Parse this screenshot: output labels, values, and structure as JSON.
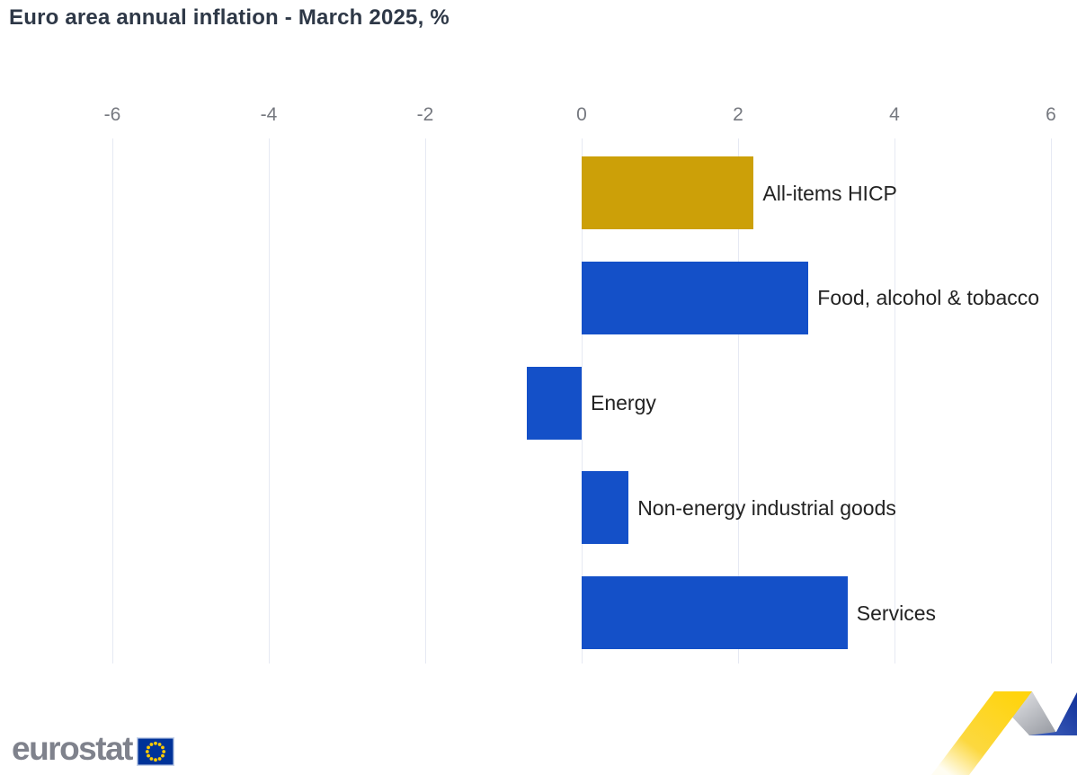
{
  "page": {
    "title": "Euro area annual inflation - March 2025, %"
  },
  "chart_data": {
    "type": "bar",
    "orientation": "horizontal",
    "title": "Euro area annual inflation - March 2025, %",
    "categories": [
      "All-items HICP",
      "Food, alcohol & tobacco",
      "Energy",
      "Non-energy industrial goods",
      "Services"
    ],
    "values": [
      2.2,
      2.9,
      -0.7,
      0.6,
      3.4
    ],
    "bar_colors": [
      "#cca008",
      "#1450c8",
      "#1450c8",
      "#1450c8",
      "#1450c8"
    ],
    "xlabel": "",
    "ylabel": "",
    "xlim": [
      -6,
      6
    ],
    "x_ticks": [
      -6,
      -4,
      -2,
      0,
      2,
      4,
      6
    ],
    "axis_position": "top",
    "grid": true,
    "legend": false,
    "unit": "%"
  },
  "branding": {
    "logo_text": "eurostat",
    "flag": "eu-flag"
  },
  "colors": {
    "accent_gold": "#cca008",
    "accent_blue": "#1450c8",
    "grid": "#e6e9f3",
    "tick": "#75787f",
    "title": "#2e3847",
    "label": "#222222",
    "logo_gray": "#7f828c",
    "eu_flag_blue": "#003399",
    "star_yellow": "#ffcc00",
    "ribbon_yellow": "#ffd40d",
    "ribbon_gray": "#b9bcc2",
    "ribbon_blue": "#1c3fa4"
  }
}
